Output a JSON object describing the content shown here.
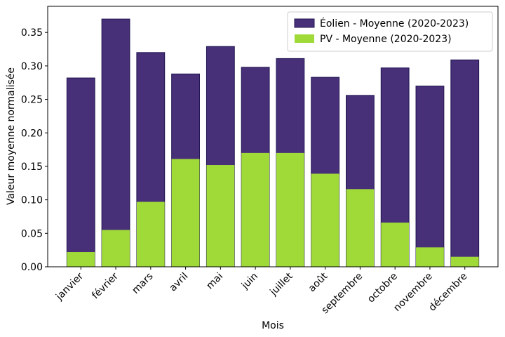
{
  "chart_data": {
    "type": "bar",
    "mode": "overlay",
    "x_label": "Mois",
    "y_label": "Valeur moyenne normalisée",
    "categories": [
      "janvier",
      "février",
      "mars",
      "avril",
      "mai",
      "juin",
      "juillet",
      "août",
      "septembre",
      "octobre",
      "novembre",
      "décembre"
    ],
    "series": [
      {
        "name": "Éolien - Moyenne (2020-2023)",
        "color": "#483079",
        "edgecolor": "#1f1450",
        "values": [
          0.282,
          0.37,
          0.32,
          0.288,
          0.329,
          0.298,
          0.311,
          0.283,
          0.256,
          0.297,
          0.27,
          0.309
        ]
      },
      {
        "name": "PV - Moyenne (2020-2023)",
        "color": "#a0da39",
        "values": [
          0.022,
          0.055,
          0.097,
          0.161,
          0.152,
          0.17,
          0.17,
          0.139,
          0.116,
          0.066,
          0.029,
          0.015
        ]
      }
    ],
    "ylim": [
      0,
      0.389
    ],
    "yticks": [
      {
        "value": 0,
        "label": "0.00"
      },
      {
        "value": 0.05,
        "label": "0.05"
      },
      {
        "value": 0.1,
        "label": "0.10"
      },
      {
        "value": 0.15,
        "label": "0.15"
      },
      {
        "value": 0.2,
        "label": "0.20"
      },
      {
        "value": 0.25,
        "label": "0.25"
      },
      {
        "value": 0.3,
        "label": "0.30"
      },
      {
        "value": 0.35,
        "label": "0.35"
      }
    ],
    "legend": "upper right",
    "grid": false
  }
}
